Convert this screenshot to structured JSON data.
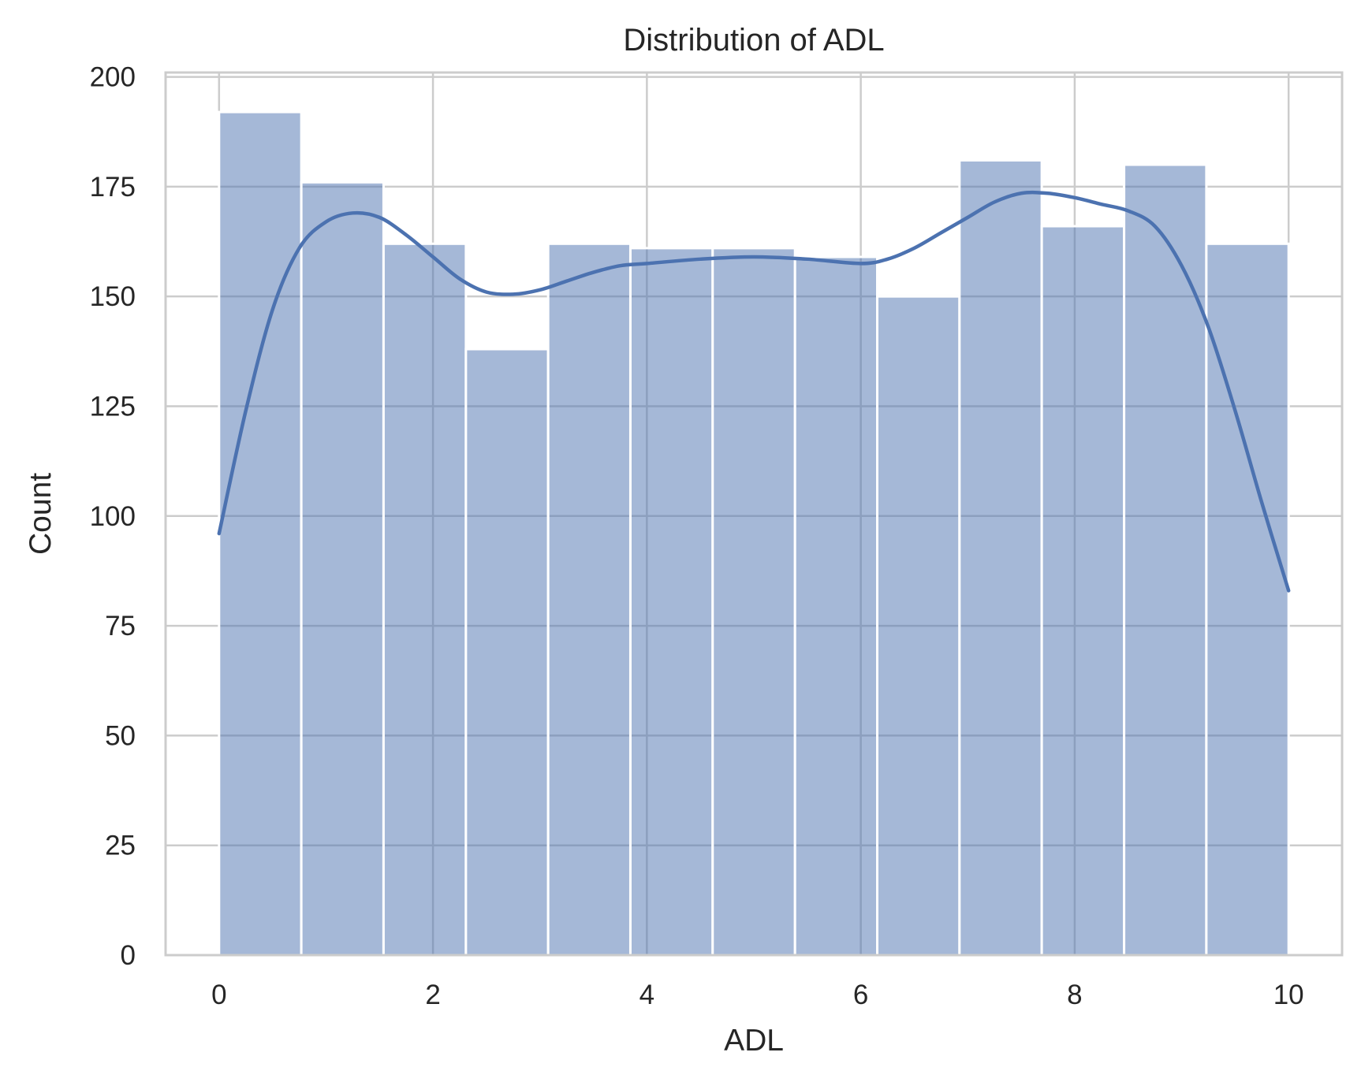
{
  "chart_data": {
    "type": "histogram",
    "title": "Distribution of ADL",
    "xlabel": "ADL",
    "ylabel": "Count",
    "xlim": [
      -0.5,
      10.5
    ],
    "ylim": [
      0,
      201
    ],
    "xticks": [
      0,
      2,
      4,
      6,
      8,
      10
    ],
    "yticks": [
      0,
      25,
      50,
      75,
      100,
      125,
      150,
      175,
      200
    ],
    "grid": true,
    "bin_edges": [
      0,
      0.769,
      1.538,
      2.308,
      3.077,
      3.846,
      4.615,
      5.385,
      6.154,
      6.923,
      7.692,
      8.462,
      9.231,
      10
    ],
    "counts": [
      192,
      176,
      162,
      138,
      162,
      161,
      161,
      159,
      150,
      181,
      166,
      180,
      162
    ],
    "kde": {
      "x": [
        0,
        0.25,
        0.5,
        0.75,
        1.0,
        1.25,
        1.5,
        1.75,
        2.0,
        2.25,
        2.5,
        2.75,
        3.0,
        3.25,
        3.5,
        3.75,
        4.0,
        4.5,
        5.0,
        5.5,
        6.0,
        6.25,
        6.5,
        6.75,
        7.0,
        7.25,
        7.5,
        7.75,
        8.0,
        8.25,
        8.5,
        8.75,
        9.0,
        9.25,
        9.5,
        9.75,
        10.0
      ],
      "y": [
        96,
        124,
        147,
        161,
        167,
        169,
        168,
        164,
        159,
        154,
        151,
        150.5,
        151.5,
        153.5,
        155.5,
        157,
        157.5,
        158.5,
        159,
        158.5,
        157.5,
        158.5,
        161,
        164.5,
        168,
        171.5,
        173.5,
        173.5,
        172.5,
        171,
        169.5,
        166,
        157,
        143,
        124,
        103,
        83
      ]
    },
    "colors": {
      "bar_fill": "#4c72b0",
      "bar_opacity": 0.5,
      "bar_edge": "#ffffff",
      "kde_line": "#4c72b0",
      "grid": "#cccccc",
      "spine": "#cccccc",
      "text": "#262626"
    }
  }
}
